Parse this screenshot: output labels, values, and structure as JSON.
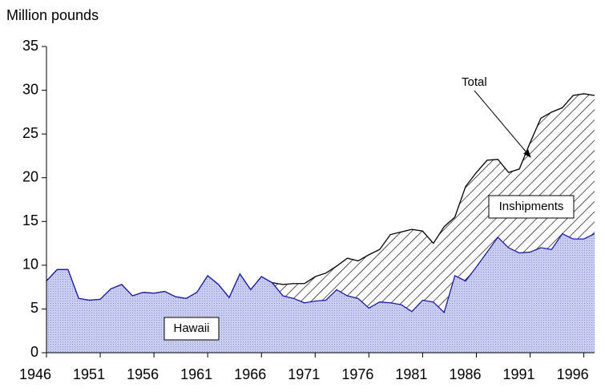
{
  "chart_data": {
    "type": "area",
    "y_axis_label": "Million pounds",
    "x": [
      1946,
      1947,
      1948,
      1949,
      1950,
      1951,
      1952,
      1953,
      1954,
      1955,
      1956,
      1957,
      1958,
      1959,
      1960,
      1961,
      1962,
      1963,
      1964,
      1965,
      1966,
      1967,
      1968,
      1969,
      1970,
      1971,
      1972,
      1973,
      1974,
      1975,
      1976,
      1977,
      1978,
      1979,
      1980,
      1981,
      1982,
      1983,
      1984,
      1985,
      1986,
      1987,
      1988,
      1989,
      1990,
      1991,
      1992,
      1993,
      1994,
      1995,
      1996,
      1997
    ],
    "series": [
      {
        "name": "Hawaii",
        "color": "#1a1aa6",
        "values": [
          8.2,
          9.5,
          9.5,
          6.2,
          6.0,
          6.1,
          7.3,
          7.8,
          6.5,
          6.9,
          6.8,
          7.0,
          6.4,
          6.2,
          6.9,
          8.8,
          7.8,
          6.3,
          9.0,
          7.2,
          8.7,
          8.0,
          6.5,
          6.2,
          5.7,
          5.9,
          6.0,
          7.2,
          6.5,
          6.2,
          5.1,
          5.8,
          5.7,
          5.5,
          4.7,
          6.0,
          5.8,
          4.6,
          8.8,
          8.2,
          9.8,
          11.5,
          13.2,
          12.0,
          11.4,
          11.5,
          12.0,
          11.8,
          13.6,
          13.0,
          13.0,
          13.6
        ]
      },
      {
        "name": "Total",
        "color": "#000000",
        "values": [
          8.2,
          9.5,
          9.5,
          6.2,
          6.0,
          6.1,
          7.3,
          7.8,
          6.5,
          6.9,
          6.8,
          7.0,
          6.4,
          6.2,
          6.9,
          8.8,
          7.8,
          6.3,
          9.0,
          7.2,
          8.7,
          8.0,
          7.8,
          7.9,
          7.9,
          8.7,
          9.1,
          9.9,
          10.8,
          10.5,
          11.2,
          11.8,
          13.5,
          13.8,
          14.1,
          13.9,
          12.5,
          14.4,
          15.5,
          19.0,
          20.6,
          22.0,
          22.1,
          20.6,
          21.0,
          24.0,
          26.8,
          27.5,
          28.0,
          29.4,
          29.6,
          29.4
        ]
      }
    ],
    "annotations": [
      "Inshipments"
    ],
    "xlim": [
      1946,
      1997
    ],
    "xticks": [
      1946,
      1951,
      1956,
      1961,
      1966,
      1971,
      1976,
      1981,
      1986,
      1991,
      1996
    ],
    "ylim": [
      0,
      35
    ],
    "yticks": [
      0,
      5,
      10,
      15,
      20,
      25,
      30,
      35
    ]
  }
}
